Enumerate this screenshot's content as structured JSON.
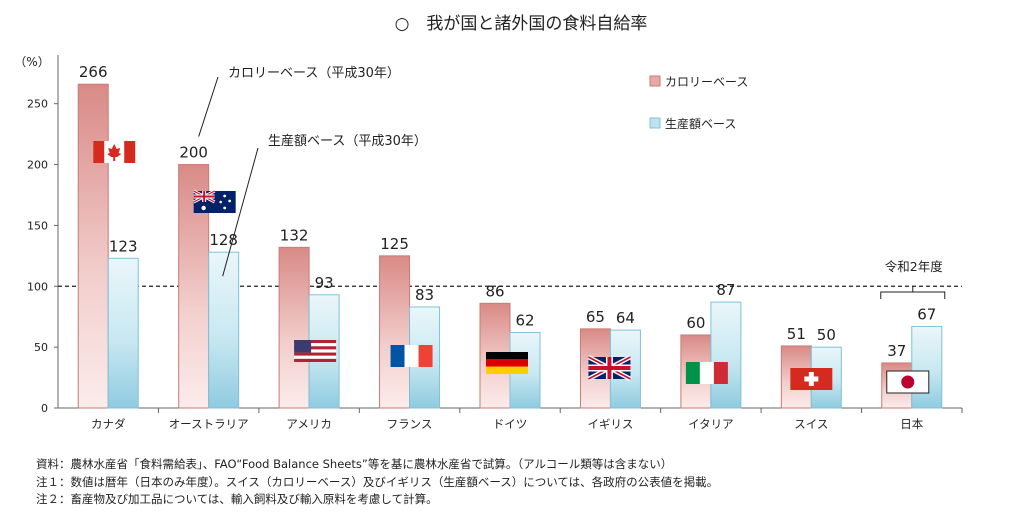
{
  "chart_data": {
    "type": "bar",
    "title": "○　我が国と諸外国の食料自給率",
    "ylabel": "（%）",
    "ylim": [
      0,
      290
    ],
    "yticks": [
      0,
      50,
      100,
      150,
      200,
      250
    ],
    "reference_line": 100,
    "categories": [
      "カナダ",
      "オーストラリア",
      "アメリカ",
      "フランス",
      "ドイツ",
      "イギリス",
      "イタリア",
      "スイス",
      "日本"
    ],
    "series": [
      {
        "name": "カロリーベース",
        "color": "#e8a9a6",
        "edge": "#c97b77",
        "values": [
          266,
          200,
          132,
          125,
          86,
          65,
          60,
          51,
          37
        ]
      },
      {
        "name": "生産額ベース",
        "color": "#bfe3ee",
        "edge": "#7fc2d8",
        "values": [
          123,
          128,
          93,
          83,
          62,
          64,
          87,
          50,
          67
        ]
      }
    ],
    "legend_position": "top-right",
    "flags": [
      "canada-flag-icon",
      "australia-flag-icon",
      "usa-flag-icon",
      "france-flag-icon",
      "germany-flag-icon",
      "uk-flag-icon",
      "italy-flag-icon",
      "switzerland-flag-icon",
      "japan-flag-icon"
    ],
    "annotations": {
      "calorie_note": "カロリーベース（平成30年）",
      "production_note": "生産額ベース（平成30年）",
      "japan_note": "令和2年度"
    }
  },
  "notes": [
    "資料：農林水産省「食料需給表」、FAO“Food Balance Sheets”等を基に農林水産省で試算。（アルコール類等は含まない）",
    "注１：数値は暦年（日本のみ年度）。スイス（カロリーベース）及びイギリス（生産額ベース）については、各政府の公表値を掲載。",
    "注２：畜産物及び加工品については、輸入飼料及び輸入原料を考慮して計算。"
  ]
}
